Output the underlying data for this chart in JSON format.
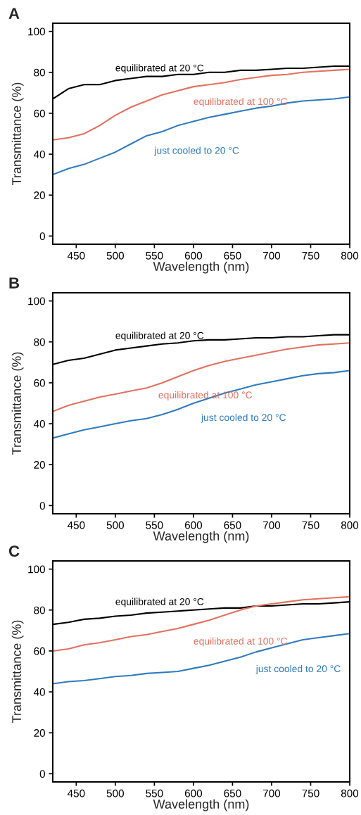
{
  "chart_data": [
    {
      "type": "line",
      "title": "A",
      "xlabel": "Wavelength (nm)",
      "ylabel": "Transmittance (%)",
      "xlim": [
        420,
        800
      ],
      "ylim": [
        -4,
        104
      ],
      "xticks": [
        450,
        500,
        550,
        600,
        650,
        700,
        750,
        800
      ],
      "yticks": [
        0,
        20,
        40,
        60,
        80,
        100
      ],
      "grid": false,
      "legend": false,
      "x": [
        420,
        440,
        460,
        480,
        500,
        520,
        540,
        560,
        580,
        600,
        620,
        640,
        660,
        680,
        700,
        720,
        740,
        760,
        780,
        800
      ],
      "series": [
        {
          "name": "equilibrated at 20 °C",
          "color": "#000000",
          "values": [
            67,
            72,
            74,
            74,
            76,
            77,
            78,
            78,
            79,
            79,
            80,
            80,
            81,
            81,
            81.5,
            82,
            82,
            82.5,
            83,
            83
          ]
        },
        {
          "name": "equilibrated at 100 °C",
          "color": "#e3705f",
          "values": [
            47,
            48,
            50,
            54,
            59,
            63,
            66,
            69,
            71,
            73,
            74,
            75,
            76.5,
            77.5,
            78.5,
            79,
            80,
            80.5,
            81,
            81.5
          ]
        },
        {
          "name": "just cooled to 20 °C",
          "color": "#2f7bbf",
          "values": [
            30,
            33,
            35,
            38,
            41,
            45,
            49,
            51,
            54,
            56,
            58,
            59.5,
            61,
            62.5,
            63.5,
            65,
            66,
            66.5,
            67,
            68
          ]
        }
      ]
    },
    {
      "type": "line",
      "title": "B",
      "xlabel": "Wavelength (nm)",
      "ylabel": "Transmittance (%)",
      "xlim": [
        420,
        800
      ],
      "ylim": [
        -4,
        104
      ],
      "xticks": [
        450,
        500,
        550,
        600,
        650,
        700,
        750,
        800
      ],
      "yticks": [
        0,
        20,
        40,
        60,
        80,
        100
      ],
      "grid": false,
      "legend": false,
      "x": [
        420,
        440,
        460,
        480,
        500,
        520,
        540,
        560,
        580,
        600,
        620,
        640,
        660,
        680,
        700,
        720,
        740,
        760,
        780,
        800
      ],
      "series": [
        {
          "name": "equilibrated at 20 °C",
          "color": "#000000",
          "values": [
            69,
            71,
            72,
            74,
            76,
            77,
            78,
            79,
            79.5,
            80.5,
            81,
            81,
            81.5,
            82,
            82,
            82.5,
            82.5,
            83,
            83.5,
            83.5
          ]
        },
        {
          "name": "equilibrated at 100 °C",
          "color": "#e3705f",
          "values": [
            46,
            49,
            51,
            53,
            54.5,
            56,
            57.5,
            60,
            63,
            66,
            68.5,
            70.5,
            72,
            73.5,
            75,
            76.5,
            77.5,
            78.5,
            79,
            79.5
          ]
        },
        {
          "name": "just cooled to 20 °C",
          "color": "#2f7bbf",
          "values": [
            33,
            35,
            37,
            38.5,
            40,
            41.5,
            42.5,
            44.5,
            47,
            50,
            52.5,
            55,
            57,
            59,
            60.5,
            62,
            63.5,
            64.5,
            65,
            66
          ]
        }
      ]
    },
    {
      "type": "line",
      "title": "C",
      "xlabel": "Wavelength (nm)",
      "ylabel": "Transmittance (%)",
      "xlim": [
        420,
        800
      ],
      "ylim": [
        -4,
        104
      ],
      "xticks": [
        450,
        500,
        550,
        600,
        650,
        700,
        750,
        800
      ],
      "yticks": [
        0,
        20,
        40,
        60,
        80,
        100
      ],
      "grid": false,
      "legend": false,
      "x": [
        420,
        440,
        460,
        480,
        500,
        520,
        540,
        560,
        580,
        600,
        620,
        640,
        660,
        680,
        700,
        720,
        740,
        760,
        780,
        800
      ],
      "series": [
        {
          "name": "equilibrated at 20 °C",
          "color": "#000000",
          "values": [
            73,
            74,
            75.5,
            76,
            77,
            77.5,
            78.5,
            79,
            79.5,
            80,
            80.5,
            81,
            81,
            82,
            82,
            82.5,
            83,
            83,
            83.5,
            84
          ]
        },
        {
          "name": "equilibrated at 100 °C",
          "color": "#e3705f",
          "values": [
            60,
            61,
            63,
            64,
            65.5,
            67,
            68,
            69.5,
            71,
            73,
            75,
            77.5,
            80,
            82,
            83,
            84,
            85,
            85.5,
            86,
            86.5
          ]
        },
        {
          "name": "just cooled to 20 °C",
          "color": "#2f7bbf",
          "values": [
            44,
            45,
            45.5,
            46.5,
            47.5,
            48,
            49,
            49.5,
            50,
            51.5,
            53,
            55,
            57,
            59.5,
            61.5,
            63.5,
            65.5,
            66.5,
            67.5,
            68.5
          ]
        }
      ]
    }
  ]
}
